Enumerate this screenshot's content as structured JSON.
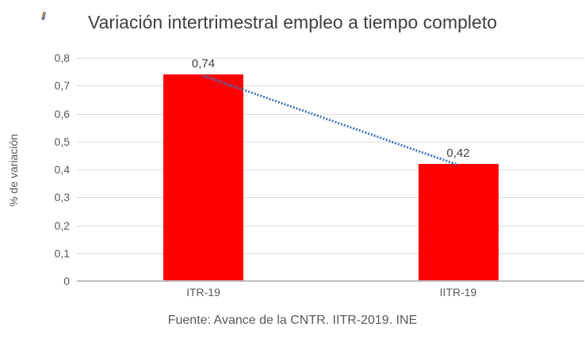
{
  "chart_data": {
    "type": "bar",
    "title": "Variación intertrimestral empleo a tiempo completo",
    "categories": [
      "ITR-19",
      "IITR-19"
    ],
    "values": [
      0.74,
      0.42
    ],
    "value_labels": [
      "0,74",
      "0,42"
    ],
    "xlabel": "",
    "ylabel": "% de variación",
    "ylim": [
      0,
      0.8
    ],
    "ytick_step": 0.1,
    "ytick_labels": [
      "0",
      "0,1",
      "0,2",
      "0,3",
      "0,4",
      "0,5",
      "0,6",
      "0,7",
      "0,8"
    ],
    "grid": true,
    "legend": "none",
    "trendline": {
      "type": "linear",
      "style": "dotted",
      "connects": [
        0.74,
        0.42
      ]
    },
    "source_note": "Fuente: Avance de la CNTR. IITR-2019. INE"
  },
  "colors": {
    "background": "#FFFFFF",
    "title_text": "#404040",
    "axis_text": "#595959",
    "data_label_text": "#404040",
    "gridline": "#DCDCDC",
    "axis_line": "#BFBFBF",
    "bar": "#FF0000",
    "trendline": "#4472C4"
  }
}
